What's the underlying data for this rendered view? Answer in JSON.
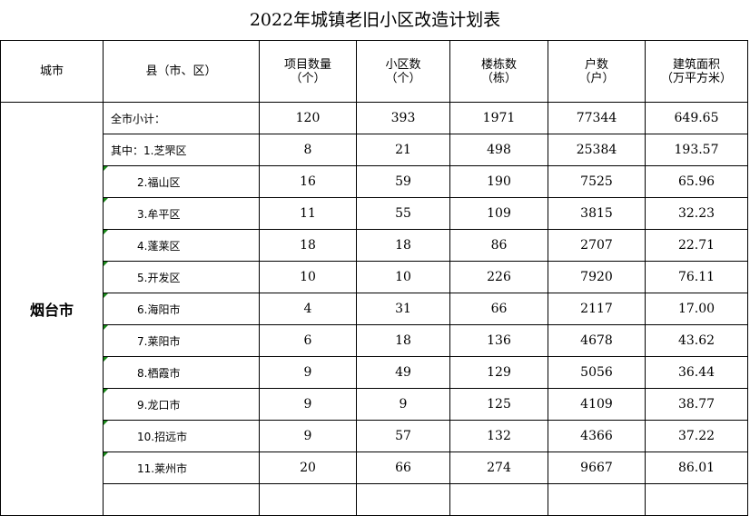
{
  "title": "2022年城镇老旧小区改造计划表",
  "headers": {
    "city": "城市",
    "county": "县（市、区）",
    "projects": [
      "项目数量",
      "（个）"
    ],
    "communities": [
      "小区数",
      "（个）"
    ],
    "buildings": [
      "楼栋数",
      "（栋）"
    ],
    "households": [
      "户数",
      "（户）"
    ],
    "area": [
      "建筑面积",
      "（万平方米）"
    ]
  },
  "city_name": "烟台市",
  "rows": [
    {
      "county": "全市小计：",
      "projects": "120",
      "communities": "393",
      "buildings": "1971",
      "households": "77344",
      "area": "649.65"
    },
    {
      "county": "其中：1.芝罘区",
      "projects": "8",
      "communities": "21",
      "buildings": "498",
      "households": "25384",
      "area": "193.57"
    },
    {
      "county": "2.福山区",
      "projects": "16",
      "communities": "59",
      "buildings": "190",
      "households": "7525",
      "area": "65.96"
    },
    {
      "county": "3.牟平区",
      "projects": "11",
      "communities": "55",
      "buildings": "109",
      "households": "3815",
      "area": "32.23"
    },
    {
      "county": "4.蓬莱区",
      "projects": "18",
      "communities": "18",
      "buildings": "86",
      "households": "2707",
      "area": "22.71"
    },
    {
      "county": "5.开发区",
      "projects": "10",
      "communities": "10",
      "buildings": "226",
      "households": "7920",
      "area": "76.11"
    },
    {
      "county": "6.海阳市",
      "projects": "4",
      "communities": "31",
      "buildings": "66",
      "households": "2117",
      "area": "17.00"
    },
    {
      "county": "7.莱阳市",
      "projects": "6",
      "communities": "18",
      "buildings": "136",
      "households": "4678",
      "area": "43.62"
    },
    {
      "county": "8.栖霞市",
      "projects": "9",
      "communities": "49",
      "buildings": "129",
      "households": "5056",
      "area": "36.44"
    },
    {
      "county": "9.龙口市",
      "projects": "9",
      "communities": "9",
      "buildings": "125",
      "households": "4109",
      "area": "38.77"
    },
    {
      "county": "10.招远市",
      "projects": "9",
      "communities": "57",
      "buildings": "132",
      "households": "4366",
      "area": "37.22"
    },
    {
      "county": "11.莱州市",
      "projects": "20",
      "communities": "66",
      "buildings": "274",
      "households": "9667",
      "area": "86.01"
    }
  ]
}
